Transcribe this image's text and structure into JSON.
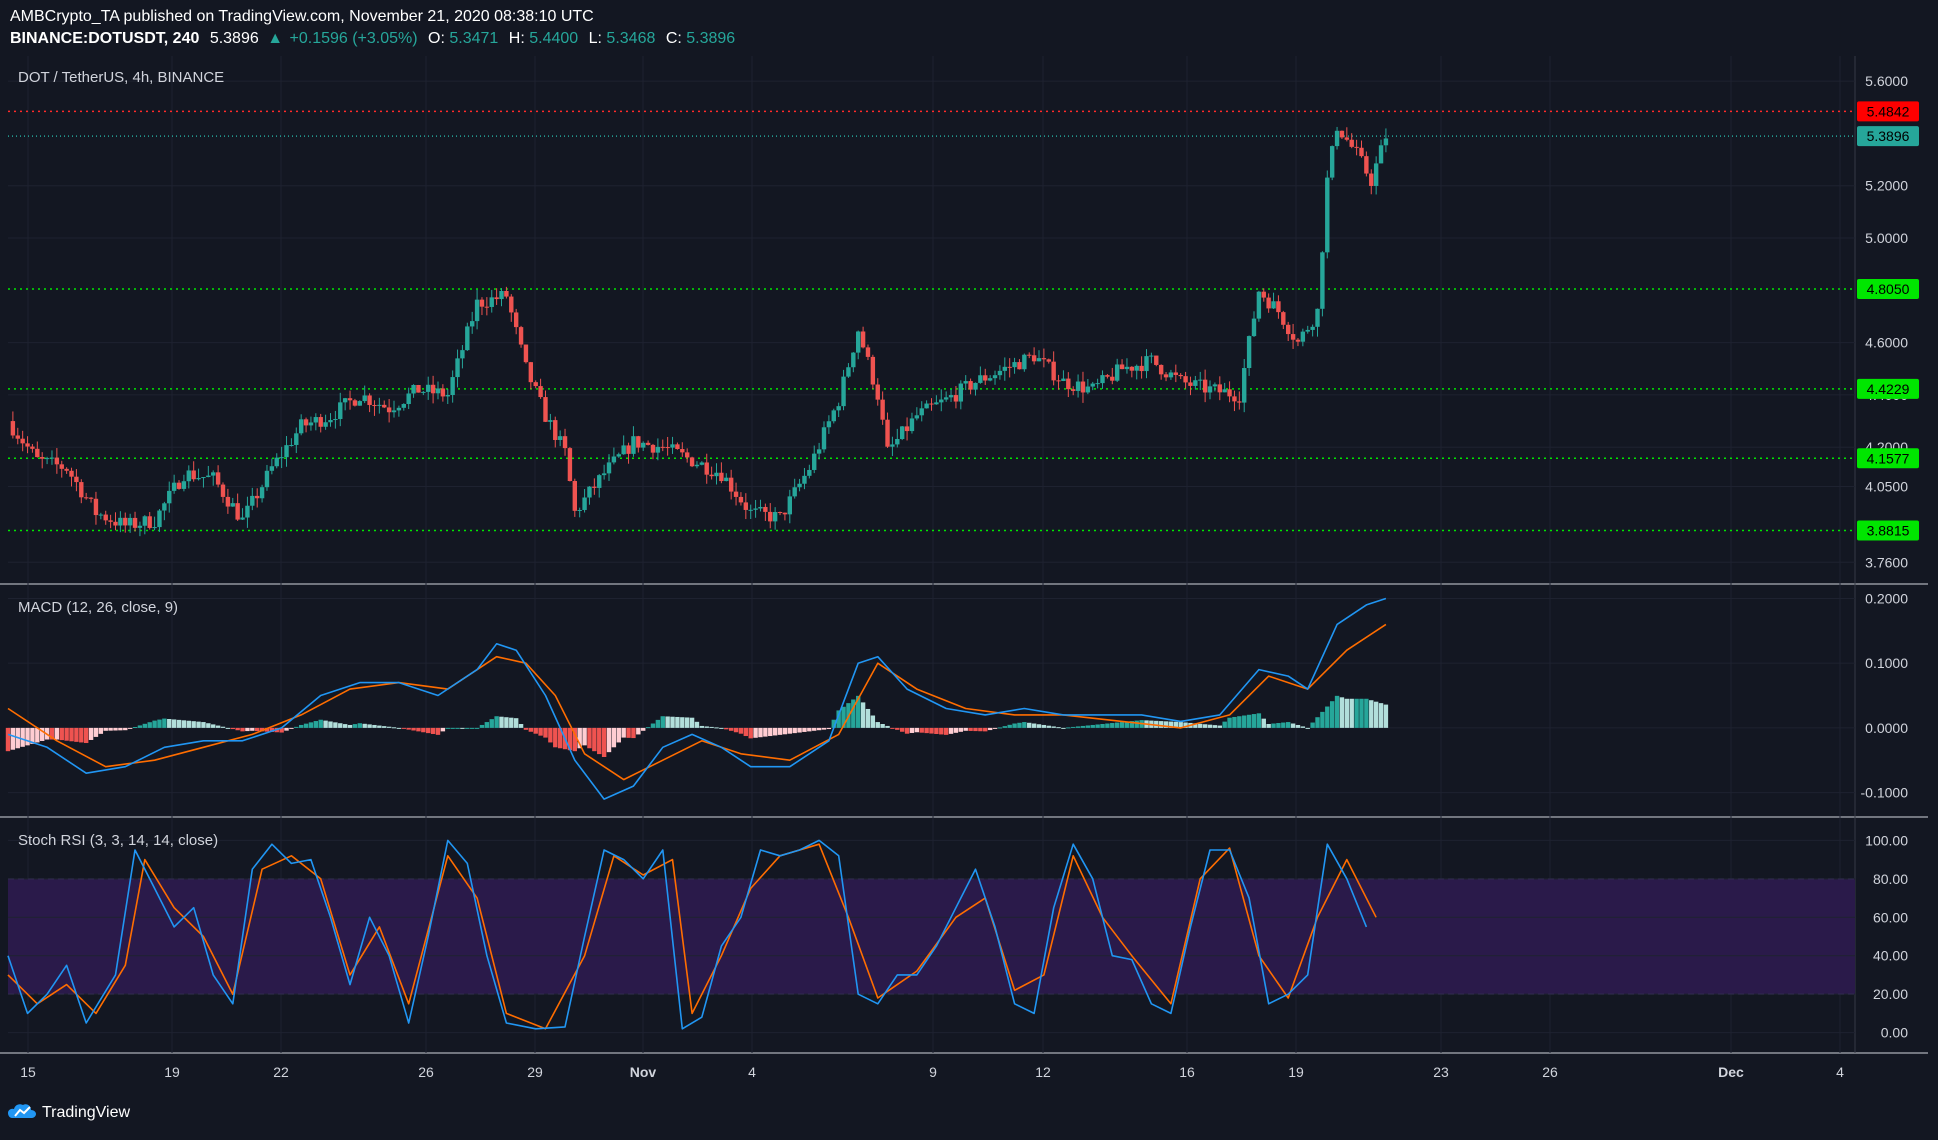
{
  "header": {
    "publisher_line": "AMBCrypto_TA published on TradingView.com, November 21, 2020 08:38:10 UTC",
    "symbol": "BINANCE:DOTUSDT, 240",
    "last": "5.3896",
    "change": "+0.1596 (+3.05%)",
    "open_label": "O:",
    "open": "5.3471",
    "high_label": "H:",
    "high": "5.4400",
    "low_label": "L:",
    "low": "5.3468",
    "close_label": "C:",
    "close": "5.3896"
  },
  "footer": {
    "brand": "TradingView"
  },
  "colors": {
    "background": "#131722",
    "up": "#26a69a",
    "down": "#ef5350",
    "support_line": "#00e600",
    "resistance_line": "#ff2a2a",
    "macd_line": "#2196f3",
    "signal_line": "#ff6d00",
    "hist_up_strong": "#26a69a",
    "hist_up_weak": "#b2dfdb",
    "hist_down_strong": "#ef5350",
    "hist_down_weak": "#ffcdd2",
    "stoch_k": "#2196f3",
    "stoch_d": "#ff6d00",
    "stoch_band": "#2a1a4a"
  },
  "chart_data": [
    {
      "type": "candlestick",
      "title": "DOT / TetherUS, 4h, BINANCE",
      "ylim": [
        3.7,
        5.65
      ],
      "x_ticks": [
        "15",
        "19",
        "22",
        "26",
        "29",
        "Nov",
        "4",
        "9",
        "12",
        "16",
        "19",
        "23",
        "26",
        "Dec",
        "4"
      ],
      "y_ticks": [
        "5.6000",
        "5.2000",
        "5.0000",
        "4.6000",
        "4.4000",
        "4.2000",
        "4.0500",
        "3.7600"
      ],
      "horizontal_levels": [
        {
          "value": 5.4842,
          "label": "5.4842",
          "kind": "resistance"
        },
        {
          "value": 5.3896,
          "label": "5.3896",
          "kind": "last-price"
        },
        {
          "value": 4.805,
          "label": "4.8050",
          "kind": "support"
        },
        {
          "value": 4.4229,
          "label": "4.4229",
          "kind": "support"
        },
        {
          "value": 4.1577,
          "label": "4.1577",
          "kind": "support"
        },
        {
          "value": 3.8815,
          "label": "3.8815",
          "kind": "support"
        }
      ],
      "close_path": [
        [
          0,
          4.3
        ],
        [
          6,
          4.15
        ],
        [
          12,
          4.12
        ],
        [
          18,
          3.95
        ],
        [
          24,
          3.9
        ],
        [
          30,
          3.92
        ],
        [
          36,
          4.1
        ],
        [
          42,
          4.08
        ],
        [
          48,
          3.92
        ],
        [
          54,
          4.12
        ],
        [
          60,
          4.28
        ],
        [
          66,
          4.32
        ],
        [
          72,
          4.4
        ],
        [
          78,
          4.35
        ],
        [
          84,
          4.42
        ],
        [
          90,
          4.4
        ],
        [
          96,
          4.75
        ],
        [
          102,
          4.78
        ],
        [
          106,
          4.5
        ],
        [
          110,
          4.32
        ],
        [
          114,
          4.18
        ],
        [
          116,
          3.95
        ],
        [
          122,
          4.1
        ],
        [
          128,
          4.22
        ],
        [
          134,
          4.2
        ],
        [
          140,
          4.15
        ],
        [
          146,
          4.1
        ],
        [
          152,
          3.95
        ],
        [
          158,
          3.93
        ],
        [
          164,
          4.12
        ],
        [
          170,
          4.38
        ],
        [
          174,
          4.65
        ],
        [
          178,
          4.4
        ],
        [
          180,
          4.18
        ],
        [
          186,
          4.32
        ],
        [
          192,
          4.38
        ],
        [
          198,
          4.45
        ],
        [
          204,
          4.5
        ],
        [
          210,
          4.55
        ],
        [
          216,
          4.45
        ],
        [
          222,
          4.42
        ],
        [
          228,
          4.5
        ],
        [
          234,
          4.53
        ],
        [
          240,
          4.45
        ],
        [
          246,
          4.42
        ],
        [
          252,
          4.4
        ],
        [
          256,
          4.8
        ],
        [
          260,
          4.72
        ],
        [
          264,
          4.6
        ],
        [
          268,
          4.72
        ],
        [
          270,
          5.22
        ],
        [
          272,
          5.43
        ],
        [
          276,
          5.32
        ],
        [
          279,
          5.22
        ],
        [
          282,
          5.39
        ]
      ],
      "x_domain": [
        0,
        378
      ]
    },
    {
      "type": "line",
      "title": "MACD (12, 26, close, 9)",
      "ylim": [
        -0.13,
        0.21
      ],
      "y_ticks": [
        "0.2000",
        "0.1000",
        "0.0000",
        "-0.1000"
      ],
      "series": [
        {
          "name": "",
          "role": "macd",
          "points": [
            [
              0,
              -0.01
            ],
            [
              8,
              -0.03
            ],
            [
              16,
              -0.07
            ],
            [
              24,
              -0.06
            ],
            [
              32,
              -0.03
            ],
            [
              40,
              -0.02
            ],
            [
              48,
              -0.02
            ],
            [
              56,
              0.0
            ],
            [
              64,
              0.05
            ],
            [
              72,
              0.07
            ],
            [
              80,
              0.07
            ],
            [
              88,
              0.05
            ],
            [
              96,
              0.09
            ],
            [
              100,
              0.13
            ],
            [
              104,
              0.12
            ],
            [
              110,
              0.05
            ],
            [
              116,
              -0.05
            ],
            [
              122,
              -0.11
            ],
            [
              128,
              -0.09
            ],
            [
              134,
              -0.03
            ],
            [
              140,
              -0.01
            ],
            [
              146,
              -0.03
            ],
            [
              152,
              -0.06
            ],
            [
              160,
              -0.06
            ],
            [
              168,
              -0.02
            ],
            [
              174,
              0.1
            ],
            [
              178,
              0.11
            ],
            [
              184,
              0.06
            ],
            [
              192,
              0.03
            ],
            [
              200,
              0.02
            ],
            [
              208,
              0.03
            ],
            [
              216,
              0.02
            ],
            [
              224,
              0.02
            ],
            [
              232,
              0.02
            ],
            [
              240,
              0.01
            ],
            [
              248,
              0.02
            ],
            [
              256,
              0.09
            ],
            [
              262,
              0.08
            ],
            [
              266,
              0.06
            ],
            [
              272,
              0.16
            ],
            [
              278,
              0.19
            ],
            [
              282,
              0.2
            ]
          ]
        },
        {
          "name": "",
          "role": "signal",
          "points": [
            [
              0,
              0.03
            ],
            [
              10,
              -0.02
            ],
            [
              20,
              -0.06
            ],
            [
              30,
              -0.05
            ],
            [
              40,
              -0.03
            ],
            [
              50,
              -0.01
            ],
            [
              60,
              0.02
            ],
            [
              70,
              0.06
            ],
            [
              80,
              0.07
            ],
            [
              90,
              0.06
            ],
            [
              100,
              0.11
            ],
            [
              106,
              0.1
            ],
            [
              112,
              0.05
            ],
            [
              118,
              -0.04
            ],
            [
              126,
              -0.08
            ],
            [
              134,
              -0.05
            ],
            [
              142,
              -0.02
            ],
            [
              150,
              -0.04
            ],
            [
              160,
              -0.05
            ],
            [
              170,
              -0.01
            ],
            [
              178,
              0.1
            ],
            [
              186,
              0.06
            ],
            [
              196,
              0.03
            ],
            [
              206,
              0.02
            ],
            [
              216,
              0.02
            ],
            [
              228,
              0.01
            ],
            [
              240,
              0.0
            ],
            [
              250,
              0.02
            ],
            [
              258,
              0.08
            ],
            [
              266,
              0.06
            ],
            [
              274,
              0.12
            ],
            [
              282,
              0.16
            ]
          ]
        }
      ]
    },
    {
      "type": "line",
      "title": "Stoch RSI (3, 3, 14, 14, close)",
      "ylim": [
        -8,
        108
      ],
      "y_ticks": [
        "100.00",
        "80.00",
        "60.00",
        "40.00",
        "20.00",
        "0.00"
      ],
      "bands": {
        "lower": 20,
        "upper": 80
      },
      "series": [
        {
          "name": "",
          "role": "k",
          "points": [
            [
              0,
              40
            ],
            [
              4,
              10
            ],
            [
              8,
              20
            ],
            [
              12,
              35
            ],
            [
              16,
              5
            ],
            [
              22,
              30
            ],
            [
              26,
              95
            ],
            [
              30,
              75
            ],
            [
              34,
              55
            ],
            [
              38,
              65
            ],
            [
              42,
              30
            ],
            [
              46,
              15
            ],
            [
              50,
              85
            ],
            [
              54,
              98
            ],
            [
              58,
              88
            ],
            [
              62,
              90
            ],
            [
              66,
              60
            ],
            [
              70,
              25
            ],
            [
              74,
              60
            ],
            [
              78,
              40
            ],
            [
              82,
              5
            ],
            [
              86,
              50
            ],
            [
              90,
              100
            ],
            [
              94,
              88
            ],
            [
              98,
              40
            ],
            [
              102,
              5
            ],
            [
              108,
              2
            ],
            [
              114,
              3
            ],
            [
              118,
              50
            ],
            [
              122,
              95
            ],
            [
              126,
              90
            ],
            [
              130,
              80
            ],
            [
              134,
              95
            ],
            [
              138,
              2
            ],
            [
              142,
              8
            ],
            [
              146,
              45
            ],
            [
              150,
              60
            ],
            [
              154,
              95
            ],
            [
              158,
              92
            ],
            [
              162,
              95
            ],
            [
              166,
              100
            ],
            [
              170,
              92
            ],
            [
              174,
              20
            ],
            [
              178,
              15
            ],
            [
              182,
              30
            ],
            [
              186,
              30
            ],
            [
              190,
              45
            ],
            [
              194,
              65
            ],
            [
              198,
              85
            ],
            [
              202,
              55
            ],
            [
              206,
              15
            ],
            [
              210,
              10
            ],
            [
              214,
              65
            ],
            [
              218,
              98
            ],
            [
              222,
              80
            ],
            [
              226,
              40
            ],
            [
              230,
              38
            ],
            [
              234,
              15
            ],
            [
              238,
              10
            ],
            [
              242,
              55
            ],
            [
              246,
              95
            ],
            [
              250,
              95
            ],
            [
              254,
              70
            ],
            [
              258,
              15
            ],
            [
              262,
              20
            ],
            [
              266,
              30
            ],
            [
              270,
              98
            ],
            [
              274,
              80
            ],
            [
              278,
              55
            ]
          ]
        },
        {
          "name": "",
          "role": "d",
          "points": [
            [
              0,
              30
            ],
            [
              6,
              15
            ],
            [
              12,
              25
            ],
            [
              18,
              10
            ],
            [
              24,
              35
            ],
            [
              28,
              90
            ],
            [
              34,
              65
            ],
            [
              40,
              50
            ],
            [
              46,
              20
            ],
            [
              52,
              85
            ],
            [
              58,
              92
            ],
            [
              64,
              80
            ],
            [
              70,
              30
            ],
            [
              76,
              55
            ],
            [
              82,
              15
            ],
            [
              90,
              92
            ],
            [
              96,
              70
            ],
            [
              102,
              10
            ],
            [
              110,
              2
            ],
            [
              118,
              40
            ],
            [
              124,
              92
            ],
            [
              130,
              82
            ],
            [
              136,
              90
            ],
            [
              140,
              10
            ],
            [
              146,
              40
            ],
            [
              152,
              75
            ],
            [
              158,
              92
            ],
            [
              166,
              98
            ],
            [
              172,
              60
            ],
            [
              178,
              18
            ],
            [
              186,
              32
            ],
            [
              194,
              60
            ],
            [
              200,
              70
            ],
            [
              206,
              22
            ],
            [
              212,
              30
            ],
            [
              218,
              92
            ],
            [
              224,
              60
            ],
            [
              230,
              40
            ],
            [
              238,
              15
            ],
            [
              244,
              80
            ],
            [
              250,
              96
            ],
            [
              256,
              40
            ],
            [
              262,
              18
            ],
            [
              268,
              60
            ],
            [
              274,
              90
            ],
            [
              280,
              60
            ]
          ]
        }
      ]
    }
  ]
}
